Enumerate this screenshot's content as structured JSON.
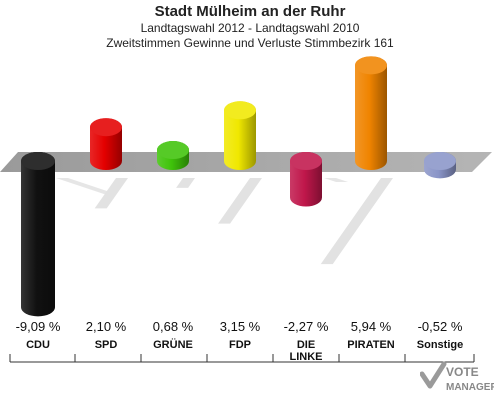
{
  "header": {
    "title": "Stadt Mülheim an der Ruhr",
    "subtitle": "Landtagswahl 2012 - Landtagswahl 2010",
    "subtitle2": "Zweitstimmen Gewinne und Verluste Stimmbezirk 161"
  },
  "logo": {
    "word1": "VOTE",
    "word2": "MANAGER",
    "icon": "check-icon"
  },
  "colors": {
    "CDU": "#111111",
    "SPD": "#e40000",
    "GRÜNE": "#3fc30a",
    "FDP": "#f0e800",
    "DIE LINKE": "#c0174b",
    "PIRATEN": "#f08400",
    "Sonstige": "#8a95c8",
    "axis": "#a5a5a5"
  },
  "chart_data": {
    "type": "bar",
    "categories": [
      "CDU",
      "SPD",
      "GRÜNE",
      "FDP",
      "DIE LINKE",
      "PIRATEN",
      "Sonstige"
    ],
    "category_lines": [
      [
        "CDU"
      ],
      [
        "SPD"
      ],
      [
        "GRÜNE"
      ],
      [
        "FDP"
      ],
      [
        "DIE",
        "LINKE"
      ],
      [
        "PIRATEN"
      ],
      [
        "Sonstige"
      ]
    ],
    "values": [
      -9.09,
      2.1,
      0.68,
      3.15,
      -2.27,
      5.94,
      -0.52
    ],
    "value_labels": [
      "-9,09 %",
      "2,10 %",
      "0,68 %",
      "3,15 %",
      "-2,27 %",
      "5,94 %",
      "-0,52 %"
    ],
    "xlabel": "",
    "ylabel": "",
    "ylim": [
      -9.09,
      5.94
    ],
    "grid": false
  }
}
